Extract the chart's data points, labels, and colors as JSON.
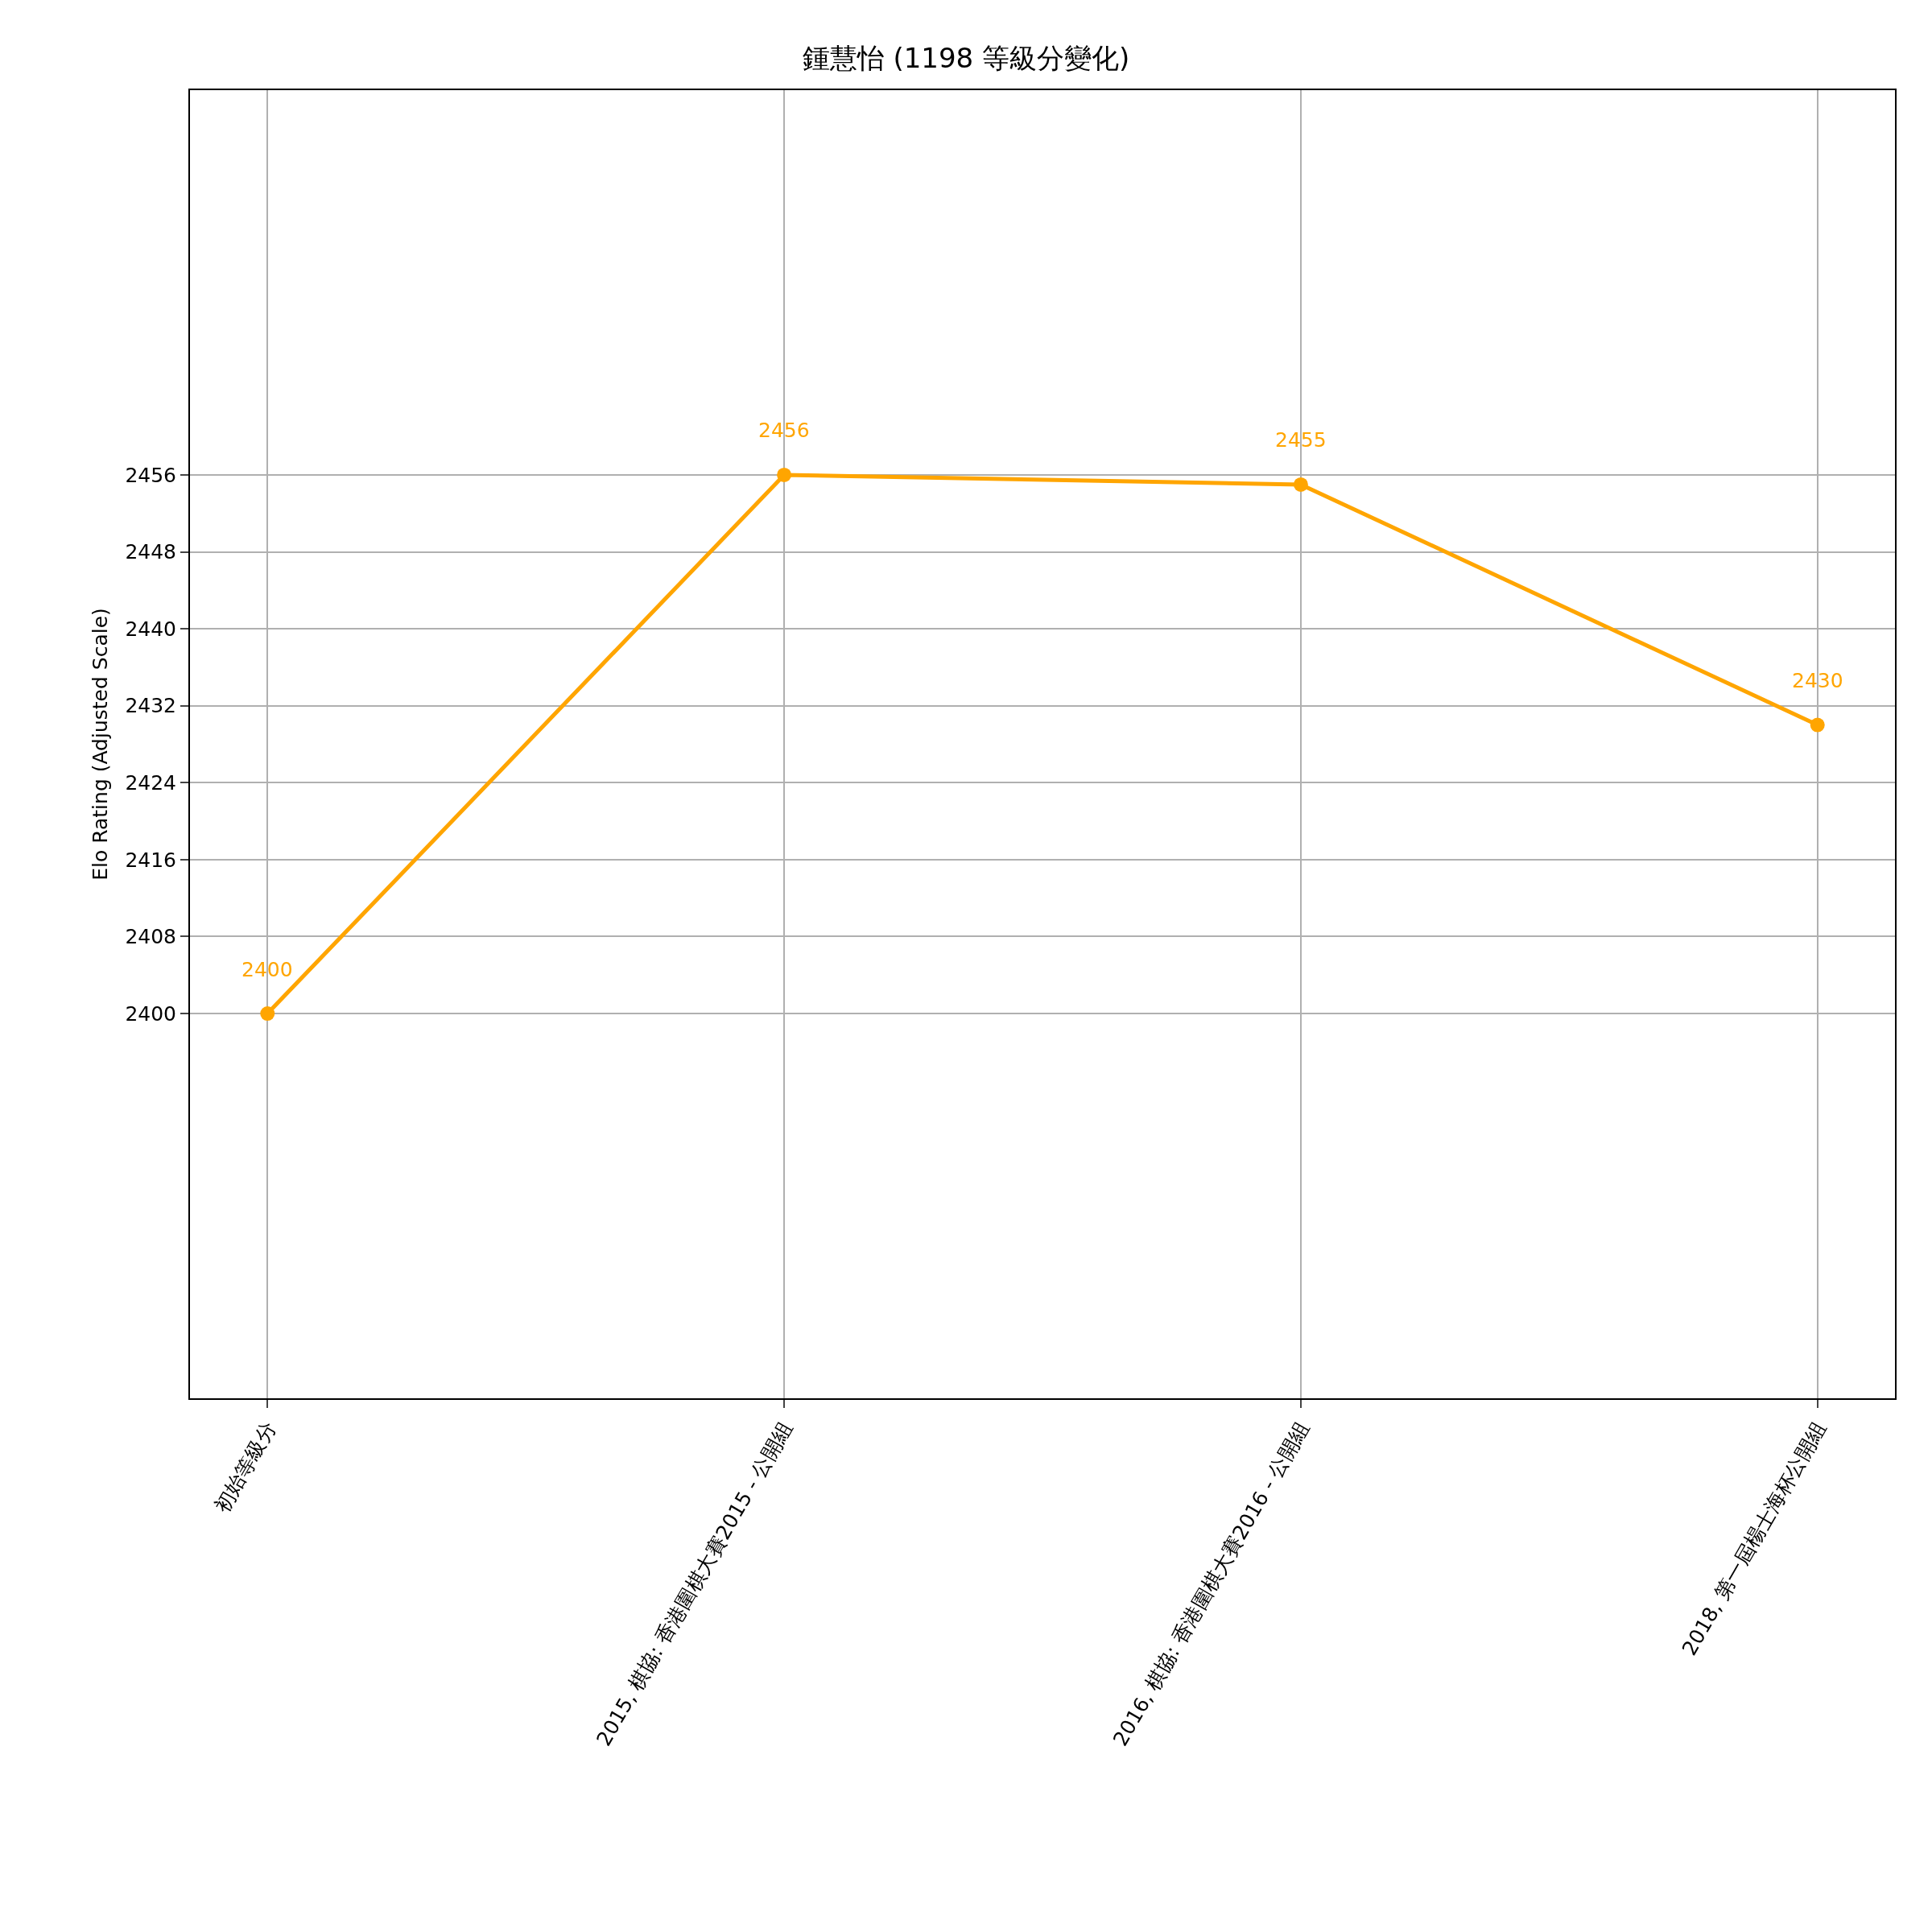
{
  "chart_data": {
    "type": "line",
    "title": "鍾慧怡 (1198 等級分變化)",
    "ylabel": "Elo Rating (Adjusted Scale)",
    "categories": [
      "初始等級分",
      "2015, 棋協: 香港圍棋大賽2015 - 公開組",
      "2016, 棋協: 香港圍棋大賽2016 - 公開組",
      "2018, 第一屆楊士海杯公開組"
    ],
    "series": [
      {
        "color": "#ffa500",
        "values": [
          2400,
          2456,
          2455,
          2430
        ]
      }
    ],
    "ylim": [
      2360,
      2496
    ],
    "yticks": [
      2400,
      2408,
      2416,
      2424,
      2432,
      2440,
      2448,
      2456
    ],
    "data_labels": true,
    "grid": true,
    "marker": "circle",
    "line_style": "solid"
  }
}
